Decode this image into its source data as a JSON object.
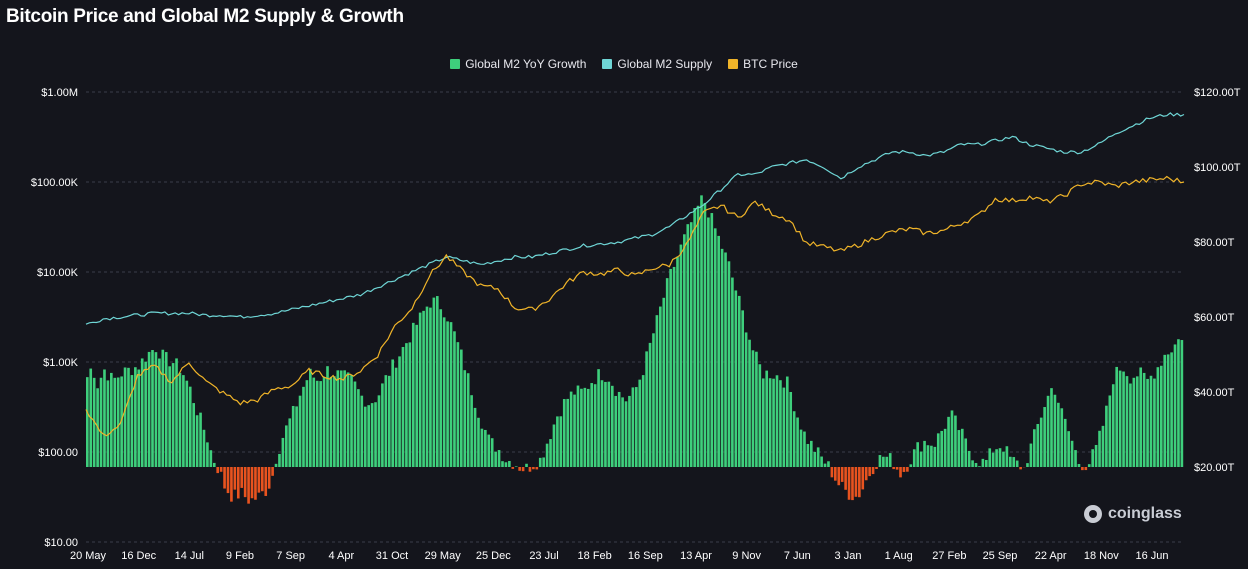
{
  "page": {
    "title": "Bitcoin Price and Global M2 Supply & Growth",
    "watermark": "coinglass"
  },
  "legend": [
    {
      "label": "Global M2 YoY Growth",
      "color": "#3ecf7c"
    },
    {
      "label": "Global M2 Supply",
      "color": "#6fd6d6"
    },
    {
      "label": "BTC Price",
      "color": "#f0b429"
    }
  ],
  "chart_data": {
    "type": "bar",
    "title": "Bitcoin Price and Global M2 Supply & Growth",
    "grid": true,
    "legend_position": "top-center",
    "x_ticks": [
      "20 May",
      "16 Dec",
      "14 Jul",
      "9 Feb",
      "7 Sep",
      "4 Apr",
      "31 Oct",
      "29 May",
      "25 Dec",
      "23 Jul",
      "18 Feb",
      "16 Sep",
      "13 Apr",
      "9 Nov",
      "7 Jun",
      "3 Jan",
      "1 Aug",
      "27 Feb",
      "25 Sep",
      "22 Apr",
      "18 Nov",
      "16 Jun"
    ],
    "left_axis": {
      "scale": "log",
      "ticks": [
        "$1.00M",
        "$100.00K",
        "$10.00K",
        "$1.00K",
        "$100.00",
        "$10.00"
      ],
      "tick_values": [
        1000000,
        100000,
        10000,
        1000,
        100,
        10
      ],
      "range": [
        10,
        1000000
      ]
    },
    "right_axis": {
      "scale": "linear",
      "ticks": [
        "$120.00T",
        "$100.00T",
        "$80.00T",
        "$60.00T",
        "$40.00T",
        "$20.00T"
      ],
      "tick_values": [
        120,
        100,
        80,
        60,
        40,
        20
      ],
      "range": [
        20,
        120
      ],
      "unit": "T"
    },
    "series": [
      {
        "name": "Global M2 YoY Growth",
        "type": "bar",
        "axis": "right",
        "baseline": 20,
        "color_positive": "#3ecf7c",
        "color_negative": "#e8531f",
        "points": [
          [
            0,
            44
          ],
          [
            0.3,
            47
          ],
          [
            0.6,
            42
          ],
          [
            1,
            46
          ],
          [
            1.5,
            43
          ],
          [
            2,
            45
          ],
          [
            2.5,
            46
          ],
          [
            3,
            47
          ],
          [
            3.5,
            50
          ],
          [
            4,
            52
          ],
          [
            4.5,
            49
          ],
          [
            5,
            48
          ],
          [
            5.5,
            46
          ],
          [
            6,
            41
          ],
          [
            6.5,
            34
          ],
          [
            7,
            28
          ],
          [
            7.3,
            23
          ],
          [
            7.6,
            20
          ],
          [
            7.8,
            18
          ],
          [
            8,
            15
          ],
          [
            8.5,
            12
          ],
          [
            9,
            13
          ],
          [
            9.5,
            11
          ],
          [
            10,
            12
          ],
          [
            10.5,
            14
          ],
          [
            10.8,
            17
          ],
          [
            11,
            22
          ],
          [
            11.5,
            29
          ],
          [
            12,
            34
          ],
          [
            12.5,
            40
          ],
          [
            13,
            45
          ],
          [
            13.5,
            43
          ],
          [
            14,
            46
          ],
          [
            14.5,
            45
          ],
          [
            15,
            44
          ],
          [
            15.5,
            43
          ],
          [
            16,
            39
          ],
          [
            16.5,
            37
          ],
          [
            17,
            39
          ],
          [
            17.5,
            44
          ],
          [
            18,
            48
          ],
          [
            18.5,
            52
          ],
          [
            19,
            56
          ],
          [
            19.5,
            60
          ],
          [
            20,
            64
          ],
          [
            20.5,
            64
          ],
          [
            21,
            61
          ],
          [
            21.5,
            55
          ],
          [
            22,
            48
          ],
          [
            22.5,
            40
          ],
          [
            23,
            33
          ],
          [
            23.5,
            27
          ],
          [
            24,
            25
          ],
          [
            24.5,
            22
          ],
          [
            25,
            21
          ],
          [
            25.3,
            20
          ],
          [
            25.6,
            19.5
          ],
          [
            26,
            20.5
          ],
          [
            26.5,
            22
          ],
          [
            27,
            28
          ],
          [
            27.5,
            34
          ],
          [
            28,
            38
          ],
          [
            28.5,
            40
          ],
          [
            29,
            40
          ],
          [
            29.5,
            43
          ],
          [
            30,
            45
          ],
          [
            30.5,
            44
          ],
          [
            31,
            40
          ],
          [
            31.5,
            38
          ],
          [
            32,
            40
          ],
          [
            32.5,
            46
          ],
          [
            33,
            54
          ],
          [
            33.5,
            62
          ],
          [
            34,
            70
          ],
          [
            34.5,
            76
          ],
          [
            35,
            82
          ],
          [
            35.5,
            87
          ],
          [
            36,
            92
          ],
          [
            36.5,
            86
          ],
          [
            37,
            80
          ],
          [
            37.5,
            74
          ],
          [
            38,
            66
          ],
          [
            38.5,
            58
          ],
          [
            39,
            50
          ],
          [
            39.5,
            45
          ],
          [
            40,
            45
          ],
          [
            40.5,
            44
          ],
          [
            41,
            42
          ],
          [
            41.5,
            34
          ],
          [
            42,
            28
          ],
          [
            42.5,
            25
          ],
          [
            43,
            22
          ],
          [
            43.3,
            20.5
          ],
          [
            43.6,
            18
          ],
          [
            44,
            15
          ],
          [
            44.5,
            13
          ],
          [
            45,
            12
          ],
          [
            45.3,
            14
          ],
          [
            45.6,
            17
          ],
          [
            46,
            20.5
          ],
          [
            46.5,
            23
          ],
          [
            47,
            22
          ],
          [
            47.3,
            20
          ],
          [
            47.6,
            18
          ],
          [
            48,
            21
          ],
          [
            48.5,
            25
          ],
          [
            49,
            27
          ],
          [
            49.5,
            26
          ],
          [
            50,
            30
          ],
          [
            50.5,
            34
          ],
          [
            51,
            30
          ],
          [
            51.5,
            25
          ],
          [
            52,
            22
          ],
          [
            52.5,
            21
          ],
          [
            53,
            25
          ],
          [
            53.5,
            26
          ],
          [
            54,
            22
          ],
          [
            54.5,
            20.5
          ],
          [
            54.8,
            19.5
          ],
          [
            55,
            23
          ],
          [
            55.5,
            30
          ],
          [
            56,
            37
          ],
          [
            56.5,
            42
          ],
          [
            57,
            34
          ],
          [
            57.5,
            28
          ],
          [
            58,
            21
          ],
          [
            58.5,
            20.5
          ],
          [
            59,
            25
          ],
          [
            59.5,
            33
          ],
          [
            60,
            44
          ],
          [
            60.5,
            47
          ],
          [
            61,
            44
          ],
          [
            61.5,
            45
          ],
          [
            62,
            43
          ],
          [
            62.5,
            46
          ],
          [
            63,
            50
          ],
          [
            63.5,
            52
          ],
          [
            64,
            55
          ]
        ]
      },
      {
        "name": "Global M2 Supply",
        "type": "line",
        "axis": "right",
        "color": "#6fd6d6",
        "points": [
          [
            0,
            58
          ],
          [
            1,
            59.5
          ],
          [
            2,
            60
          ],
          [
            3,
            60.5
          ],
          [
            4,
            61
          ],
          [
            5,
            61
          ],
          [
            6,
            61
          ],
          [
            7,
            60.5
          ],
          [
            8,
            60.5
          ],
          [
            9,
            60
          ],
          [
            10,
            60.5
          ],
          [
            11,
            61
          ],
          [
            12,
            62
          ],
          [
            13,
            63
          ],
          [
            14,
            64
          ],
          [
            15,
            65
          ],
          [
            16,
            66
          ],
          [
            17,
            68
          ],
          [
            18,
            70
          ],
          [
            19,
            72
          ],
          [
            20,
            74
          ],
          [
            21,
            76
          ],
          [
            22,
            75
          ],
          [
            23,
            74
          ],
          [
            24,
            75
          ],
          [
            25,
            76
          ],
          [
            26,
            76
          ],
          [
            27,
            77
          ],
          [
            28,
            78
          ],
          [
            29,
            79
          ],
          [
            30,
            79.5
          ],
          [
            31,
            80
          ],
          [
            32,
            81
          ],
          [
            33,
            82
          ],
          [
            34,
            84
          ],
          [
            35,
            87
          ],
          [
            36,
            90
          ],
          [
            37,
            94
          ],
          [
            38,
            98
          ],
          [
            39,
            98
          ],
          [
            40,
            100
          ],
          [
            41,
            101
          ],
          [
            42,
            102
          ],
          [
            43,
            100
          ],
          [
            44,
            97
          ],
          [
            45,
            100
          ],
          [
            46,
            102
          ],
          [
            47,
            104
          ],
          [
            48,
            104
          ],
          [
            49,
            103
          ],
          [
            50,
            104
          ],
          [
            51,
            106
          ],
          [
            52,
            106
          ],
          [
            53,
            107
          ],
          [
            54,
            108
          ],
          [
            55,
            106
          ],
          [
            56,
            105
          ],
          [
            57,
            104
          ],
          [
            58,
            104
          ],
          [
            59,
            106
          ],
          [
            60,
            109
          ],
          [
            61,
            111
          ],
          [
            62,
            113
          ],
          [
            63,
            114
          ],
          [
            64,
            114
          ]
        ]
      },
      {
        "name": "BTC Price",
        "type": "line",
        "axis": "left",
        "color": "#f0b429",
        "points": [
          [
            0,
            300
          ],
          [
            1,
            150
          ],
          [
            2,
            200
          ],
          [
            3,
            700
          ],
          [
            4,
            900
          ],
          [
            5,
            600
          ],
          [
            6,
            1000
          ],
          [
            7,
            600
          ],
          [
            8,
            450
          ],
          [
            9,
            350
          ],
          [
            10,
            380
          ],
          [
            11,
            500
          ],
          [
            12,
            550
          ],
          [
            13,
            800
          ],
          [
            14,
            700
          ],
          [
            15,
            650
          ],
          [
            16,
            800
          ],
          [
            17,
            1200
          ],
          [
            18,
            2500
          ],
          [
            19,
            4000
          ],
          [
            20,
            9000
          ],
          [
            21,
            15000
          ],
          [
            22,
            10000
          ],
          [
            23,
            7000
          ],
          [
            24,
            6500
          ],
          [
            25,
            4000
          ],
          [
            26,
            3800
          ],
          [
            27,
            5000
          ],
          [
            28,
            7500
          ],
          [
            29,
            10000
          ],
          [
            30,
            9500
          ],
          [
            31,
            10500
          ],
          [
            32,
            9000
          ],
          [
            33,
            11000
          ],
          [
            34,
            12000
          ],
          [
            35,
            20000
          ],
          [
            36,
            45000
          ],
          [
            37,
            55000
          ],
          [
            38,
            40000
          ],
          [
            39,
            60000
          ],
          [
            40,
            45000
          ],
          [
            41,
            38000
          ],
          [
            42,
            21000
          ],
          [
            43,
            19000
          ],
          [
            44,
            17000
          ],
          [
            45,
            20000
          ],
          [
            46,
            24000
          ],
          [
            47,
            28000
          ],
          [
            48,
            30000
          ],
          [
            49,
            27000
          ],
          [
            50,
            29000
          ],
          [
            51,
            35000
          ],
          [
            52,
            42000
          ],
          [
            53,
            65000
          ],
          [
            54,
            62000
          ],
          [
            55,
            68000
          ],
          [
            56,
            60000
          ],
          [
            57,
            70000
          ],
          [
            58,
            95000
          ],
          [
            59,
            100000
          ],
          [
            60,
            90000
          ],
          [
            61,
            100000
          ],
          [
            62,
            105000
          ],
          [
            63,
            110000
          ],
          [
            64,
            100000
          ]
        ]
      }
    ]
  }
}
